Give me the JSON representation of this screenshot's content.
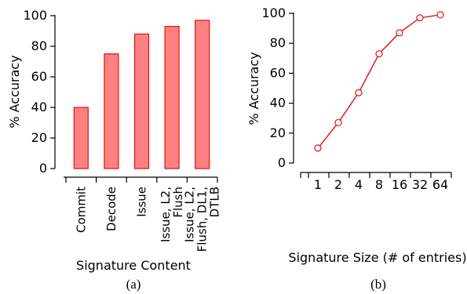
{
  "chart_data": [
    {
      "type": "bar",
      "xlabel": "Signature Content",
      "ylabel": "% Accuracy",
      "caption": "(a)",
      "ylim": [
        0,
        100
      ],
      "yticks": [
        "0",
        "20",
        "40",
        "60",
        "80",
        "100"
      ],
      "categories": [
        [
          "Commit"
        ],
        [
          "Decode"
        ],
        [
          "Issue"
        ],
        [
          "Issue, L2,",
          "Flush"
        ],
        [
          "Issue, L2,",
          "Flush, DL1,",
          "DTLB"
        ]
      ],
      "values": [
        40,
        75,
        88,
        93,
        97
      ],
      "color": "#ff8080",
      "edge_color": "#e01010"
    },
    {
      "type": "line",
      "xlabel": "Signature Size (# of entries)",
      "ylabel": "% Accuracy",
      "caption": "(b)",
      "ylim": [
        0,
        100
      ],
      "yticks": [
        "0",
        "20",
        "40",
        "60",
        "80",
        "100"
      ],
      "x": [
        "1",
        "2",
        "4",
        "8",
        "16",
        "32",
        "64"
      ],
      "values": [
        10,
        27,
        47,
        73,
        87,
        97,
        99
      ],
      "color": "#e01010",
      "marker": "open-circle"
    }
  ]
}
